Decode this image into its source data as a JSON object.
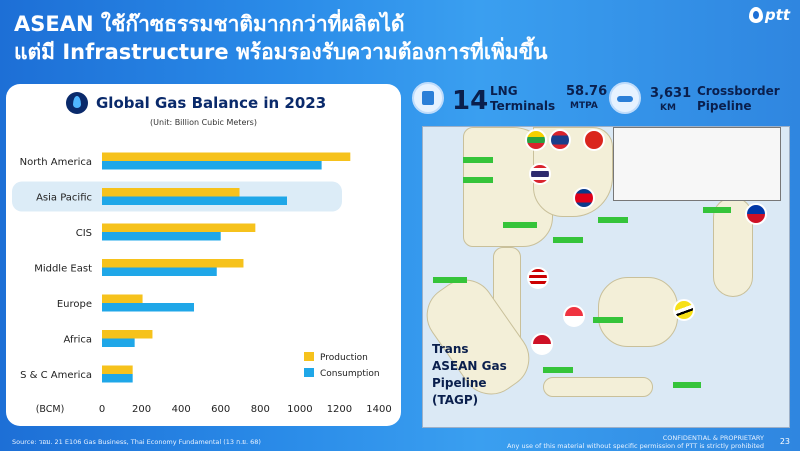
{
  "header": {
    "title_line1": "ASEAN ใช้ก๊าซธรรมชาติมากกว่าที่ผลิตได้",
    "title_line2": "แต่มี Infrastructure พร้อมรองรับความต้องการที่เพิ่มขึ้น",
    "logo_text": "ptt"
  },
  "stats": {
    "lng_count": "14",
    "lng_label": "LNG Terminals",
    "mtpa_value": "58.76",
    "mtpa_unit": "MTPA",
    "pipeline_value": "3,631",
    "pipeline_unit": "KM",
    "pipeline_label": "Crossborder Pipeline"
  },
  "map": {
    "caption": "Trans ASEAN Gas Pipeline (TAGP)"
  },
  "footer": {
    "source": "Source: วอม. 21 E106 Gas Business, Thai Economy Fundamental (13 ก.ย. 68)",
    "confidential_line1": "CONFIDENTIAL & PROPRIETARY",
    "confidential_line2": "Any use of this material without specific permission of PTT is strictly prohibited",
    "page": "23"
  },
  "chart_data": {
    "type": "bar",
    "orientation": "horizontal",
    "title": "Global Gas Balance in 2023",
    "subtitle": "(Unit: Billion Cubic Meters)",
    "xlabel": "(BCM)",
    "categories": [
      "North America",
      "Asia Pacific",
      "CIS",
      "Middle East",
      "Europe",
      "Africa",
      "S & C America"
    ],
    "highlighted_category": "Asia Pacific",
    "series": [
      {
        "name": "Production",
        "color": "#f6c21c",
        "values": [
          1255,
          695,
          775,
          715,
          205,
          255,
          155
        ]
      },
      {
        "name": "Consumption",
        "color": "#1fa7e8",
        "values": [
          1110,
          935,
          600,
          580,
          465,
          165,
          155
        ]
      }
    ],
    "xlim": [
      0,
      1400
    ],
    "xticks": [
      "0",
      "200",
      "400",
      "600",
      "800",
      "1000",
      "1200",
      "1400"
    ],
    "legend": "bottom-right",
    "grid": false
  }
}
